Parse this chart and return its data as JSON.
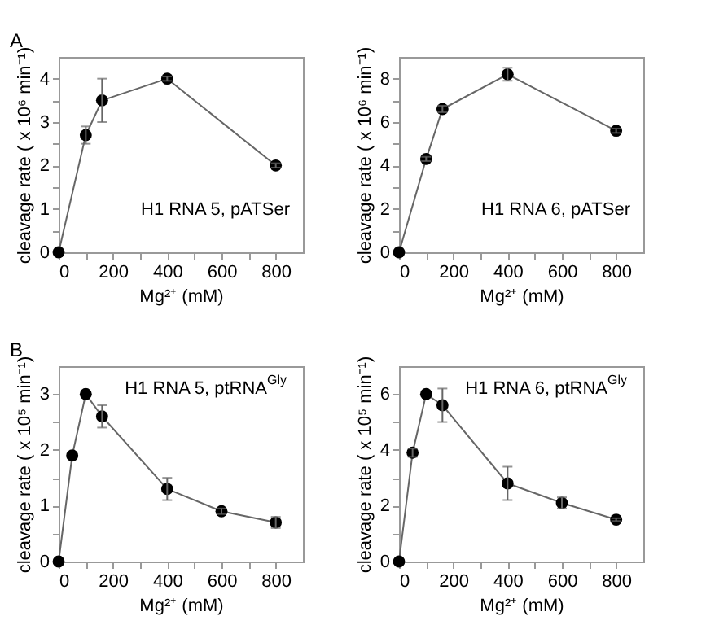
{
  "chart_data": [
    {
      "type": "line",
      "x": [
        0,
        100,
        160,
        400,
        800
      ],
      "series": [
        {
          "color": "#000000",
          "values": [
            0,
            2.7,
            3.5,
            4.0,
            2.0
          ],
          "errors": [
            null,
            0.2,
            0.5,
            0.05,
            0.05
          ]
        }
      ],
      "xlabel": "Mg²⁺ (mM)",
      "ylabel": "cleavage  rate ( x 10⁶ min⁻¹)",
      "xlim": [
        0,
        900
      ],
      "ylim": [
        0,
        4.5
      ],
      "xticks": [
        0,
        {
          "value": 100,
          "label": null
        },
        200,
        {
          "value": 300,
          "label": null
        },
        400,
        {
          "value": 500,
          "label": null
        },
        600,
        {
          "value": 700,
          "label": null
        },
        800
      ],
      "yticks": [
        0,
        {
          "value": 0.5,
          "label": null
        },
        1,
        {
          "value": 1.5,
          "label": null
        },
        2,
        {
          "value": 2.5,
          "label": null
        },
        3,
        {
          "value": 3.5,
          "label": null
        },
        4
      ],
      "marker": "circle",
      "line_style": "solid",
      "grid": false,
      "legend": false,
      "annotations": [
        "A",
        "H1 RNA 5, pATSer"
      ]
    },
    {
      "type": "line",
      "x": [
        0,
        100,
        160,
        400,
        800
      ],
      "series": [
        {
          "color": "#000000",
          "values": [
            0,
            4.3,
            6.6,
            8.2,
            5.6
          ],
          "errors": [
            null,
            0.1,
            0.15,
            0.3,
            0.1
          ]
        }
      ],
      "xlabel": "Mg²⁺ (mM)",
      "ylabel": "cleavage  rate ( x 10⁶ min⁻¹)",
      "xlim": [
        0,
        900
      ],
      "ylim": [
        0,
        9
      ],
      "xticks": [
        0,
        {
          "value": 100,
          "label": null
        },
        200,
        {
          "value": 300,
          "label": null
        },
        400,
        {
          "value": 500,
          "label": null
        },
        600,
        {
          "value": 700,
          "label": null
        },
        800
      ],
      "yticks": [
        0,
        {
          "value": 1,
          "label": null
        },
        2,
        {
          "value": 3,
          "label": null
        },
        4,
        {
          "value": 5,
          "label": null
        },
        6,
        {
          "value": 7,
          "label": null
        },
        8
      ],
      "marker": "circle",
      "line_style": "solid",
      "grid": false,
      "legend": false,
      "annotations": [
        "H1 RNA 6, pATSer"
      ]
    },
    {
      "type": "line",
      "x": [
        0,
        50,
        100,
        160,
        400,
        600,
        800
      ],
      "series": [
        {
          "color": "#000000",
          "values": [
            0,
            1.9,
            3.0,
            2.6,
            1.3,
            0.9,
            0.7
          ],
          "errors": [
            null,
            null,
            null,
            0.2,
            0.2,
            0.05,
            0.1
          ]
        }
      ],
      "xlabel": "Mg²⁺ (mM)",
      "ylabel": "cleavage  rate ( x 10⁵ min⁻¹)",
      "xlim": [
        0,
        900
      ],
      "ylim": [
        0,
        3.5
      ],
      "xticks": [
        0,
        {
          "value": 100,
          "label": null
        },
        200,
        {
          "value": 300,
          "label": null
        },
        400,
        {
          "value": 500,
          "label": null
        },
        600,
        {
          "value": 700,
          "label": null
        },
        800
      ],
      "yticks": [
        0,
        {
          "value": 0.5,
          "label": null
        },
        1,
        {
          "value": 1.5,
          "label": null
        },
        2,
        {
          "value": 2.5,
          "label": null
        },
        3
      ],
      "marker": "circle",
      "line_style": "solid",
      "grid": false,
      "legend": false,
      "annotations": [
        "B",
        "H1 RNA 5, ptRNA$^{Gly}$"
      ]
    },
    {
      "type": "line",
      "x": [
        0,
        50,
        100,
        160,
        400,
        600,
        800
      ],
      "series": [
        {
          "color": "#000000",
          "values": [
            0,
            3.9,
            6.0,
            5.6,
            2.8,
            2.1,
            1.5
          ],
          "errors": [
            null,
            0.15,
            null,
            0.6,
            0.6,
            0.2,
            0.05
          ]
        }
      ],
      "xlabel": "Mg²⁺ (mM)",
      "ylabel": "cleavage  rate ( x 10⁵ min⁻¹)",
      "xlim": [
        0,
        900
      ],
      "ylim": [
        0,
        7
      ],
      "xticks": [
        0,
        {
          "value": 100,
          "label": null
        },
        200,
        {
          "value": 300,
          "label": null
        },
        400,
        {
          "value": 500,
          "label": null
        },
        600,
        {
          "value": 700,
          "label": null
        },
        800
      ],
      "yticks": [
        0,
        {
          "value": 1,
          "label": null
        },
        2,
        {
          "value": 3,
          "label": null
        },
        4,
        {
          "value": 5,
          "label": null
        },
        6
      ],
      "marker": "circle",
      "line_style": "solid",
      "grid": false,
      "legend": false,
      "annotations": [
        "H1 RNA 6, ptRNA$^{Gly}$"
      ]
    }
  ]
}
